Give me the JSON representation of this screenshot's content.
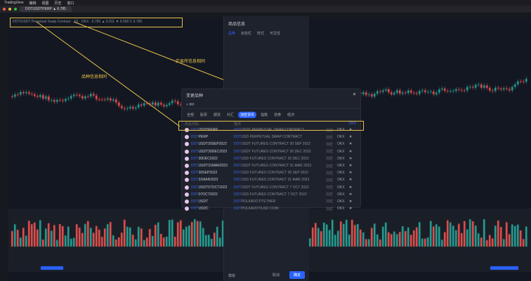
{
  "menubar": {
    "items": [
      "TradingView",
      "编辑",
      "视图",
      "历史",
      "窗口"
    ]
  },
  "tab": {
    "title": "DOTUSDTPERP ▲ 6.785"
  },
  "legend": {
    "text": "DOT/USDT Perpetual Swap Contract · 1D · OKX · 6.785 ▲ 6.911 ▼ 6.590 C 6.785"
  },
  "annotations": {
    "exchange_same": "交易所信息相同",
    "symbol_same": "品种信息相同"
  },
  "settings": {
    "title": "商品信息",
    "tabs": [
      "品种",
      "状态栏",
      "样式",
      "可见性"
    ],
    "ok": "确定",
    "cancel": "取消",
    "default": "模板"
  },
  "search": {
    "title": "变更品种",
    "query": "dot",
    "close": "✕",
    "filters": [
      "全部",
      "股票",
      "期货",
      "外汇",
      "加密货币",
      "指数",
      "债券",
      "经济"
    ],
    "active_filter": 4,
    "col_symbol": "商品代码",
    "col_desc": "描述",
    "exchange_col": "OKX",
    "rows": [
      {
        "hl": "DOT",
        "sym": "USDTPERP",
        "desc": "USDT PERPETUAL SWAP CONTRACT",
        "type": "加密",
        "ex": "OKX"
      },
      {
        "hl": "DOT",
        "sym": "PERP",
        "desc": "USD PERPETUAL SWAP CONTRACT",
        "type": "加密",
        "ex": "OKX"
      },
      {
        "hl": "DOT",
        "sym": "USDT30SEP2022",
        "desc": "USDT FUTURES CONTRACT 30 SEP 2022",
        "type": "加密",
        "ex": "OKX"
      },
      {
        "hl": "DOT",
        "sym": "USDT30DEC2022",
        "desc": "USDT FUTURES CONTRACT 30 DEC 2022",
        "type": "加密",
        "ex": "OKX"
      },
      {
        "hl": "DOT",
        "sym": "30DEC2022",
        "desc": "USD FUTURES CONTRACT 30 DEC 2022",
        "type": "加密",
        "ex": "OKX"
      },
      {
        "hl": "DOT",
        "sym": "USDT31MAR2023",
        "desc": "USDT FUTURES CONTRACT 31 MAR 2023",
        "type": "加密",
        "ex": "OKX"
      },
      {
        "hl": "DOT",
        "sym": "30SEP2022",
        "desc": "USD FUTURES CONTRACT 30 SEP 2022",
        "type": "加密",
        "ex": "OKX"
      },
      {
        "hl": "DOT",
        "sym": "31MAR2023",
        "desc": "USD FUTURES CONTRACT 31 MAR 2023",
        "type": "加密",
        "ex": "OKX"
      },
      {
        "hl": "DOT",
        "sym": "USDT07OCT2022",
        "desc": "USDT FUTURES CONTRACT 7 OCT 2022",
        "type": "加密",
        "ex": "OKX"
      },
      {
        "hl": "DOT",
        "sym": "07OCT2022",
        "desc": "USD FUTURES CONTRACT 7 OCT 2022",
        "type": "加密",
        "ex": "OKX"
      },
      {
        "hl": "DOT",
        "sym": "USDT",
        "desc": "POLKADOT/TETHER",
        "type": "加密",
        "ex": "OKX"
      },
      {
        "hl": "DOT",
        "sym": "USDC",
        "desc": "POLKADOT/USD COIN",
        "type": "加密",
        "ex": "OKX"
      }
    ]
  },
  "colors": {
    "up": "#26a69a",
    "down": "#ef5350",
    "accent": "#2962ff",
    "highlight": "#e8c14a"
  }
}
